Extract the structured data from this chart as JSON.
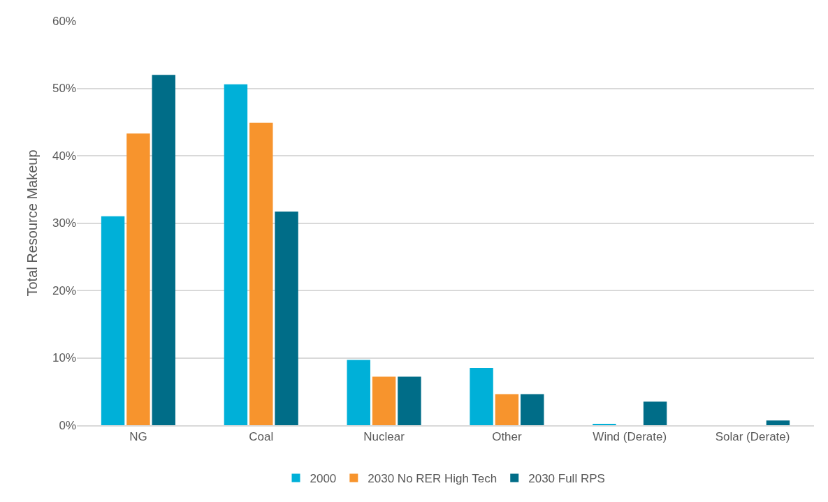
{
  "chart_data": {
    "type": "bar",
    "ylabel": "Total Resource Makeup",
    "categories": [
      "NG",
      "Coal",
      "Nuclear",
      "Other",
      "Wind (Derate)",
      "Solar (Derate)"
    ],
    "series": [
      {
        "name": "2000",
        "color": "#00b0d8",
        "values": [
          0.31,
          0.506,
          0.097,
          0.085,
          0.002,
          0
        ]
      },
      {
        "name": "2030 No RER High Tech",
        "color": "#f7942d",
        "values": [
          0.433,
          0.449,
          0.072,
          0.046,
          0,
          0
        ]
      },
      {
        "name": "2030 Full RPS",
        "color": "#006d88",
        "values": [
          0.52,
          0.317,
          0.072,
          0.046,
          0.035,
          0.007
        ]
      }
    ],
    "ylim": [
      0,
      0.6
    ],
    "yticks": [
      {
        "value": 0,
        "label": "0%"
      },
      {
        "value": 0.1,
        "label": "10%"
      },
      {
        "value": 0.2,
        "label": "20%"
      },
      {
        "value": 0.3,
        "label": "30%"
      },
      {
        "value": 0.4,
        "label": "40%"
      },
      {
        "value": 0.5,
        "label": "50%"
      },
      {
        "value": 0.6,
        "label": "60%"
      }
    ],
    "grid": "y",
    "legend": "bottom"
  }
}
